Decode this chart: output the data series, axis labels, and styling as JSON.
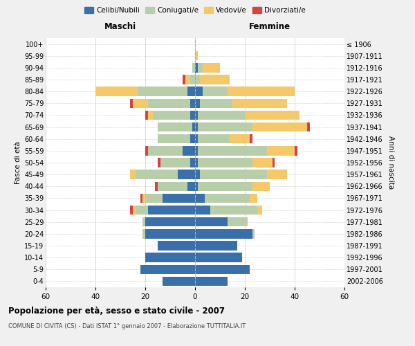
{
  "age_groups": [
    "0-4",
    "5-9",
    "10-14",
    "15-19",
    "20-24",
    "25-29",
    "30-34",
    "35-39",
    "40-44",
    "45-49",
    "50-54",
    "55-59",
    "60-64",
    "65-69",
    "70-74",
    "75-79",
    "80-84",
    "85-89",
    "90-94",
    "95-99",
    "100+"
  ],
  "birth_years": [
    "2002-2006",
    "1997-2001",
    "1992-1996",
    "1987-1991",
    "1982-1986",
    "1977-1981",
    "1972-1976",
    "1967-1971",
    "1962-1966",
    "1957-1961",
    "1952-1956",
    "1947-1951",
    "1942-1946",
    "1937-1941",
    "1932-1936",
    "1927-1931",
    "1922-1926",
    "1917-1921",
    "1912-1916",
    "1907-1911",
    "≤ 1906"
  ],
  "maschi": {
    "celibi": [
      13,
      22,
      20,
      15,
      20,
      20,
      19,
      13,
      3,
      7,
      2,
      5,
      2,
      1,
      2,
      2,
      3,
      0,
      0,
      0,
      0
    ],
    "coniugati": [
      0,
      0,
      0,
      0,
      1,
      1,
      5,
      7,
      12,
      17,
      12,
      14,
      13,
      14,
      15,
      17,
      20,
      2,
      1,
      0,
      0
    ],
    "vedovi": [
      0,
      0,
      0,
      0,
      0,
      0,
      1,
      1,
      0,
      2,
      0,
      0,
      0,
      0,
      2,
      6,
      17,
      2,
      0,
      0,
      0
    ],
    "divorziati": [
      0,
      0,
      0,
      0,
      0,
      0,
      1,
      1,
      1,
      0,
      1,
      1,
      0,
      0,
      1,
      1,
      0,
      1,
      0,
      0,
      0
    ]
  },
  "femmine": {
    "nubili": [
      13,
      22,
      19,
      17,
      23,
      13,
      6,
      4,
      1,
      2,
      1,
      1,
      1,
      1,
      1,
      2,
      3,
      0,
      1,
      0,
      0
    ],
    "coniugate": [
      0,
      0,
      0,
      0,
      1,
      8,
      19,
      18,
      22,
      27,
      22,
      28,
      13,
      22,
      19,
      13,
      10,
      2,
      2,
      0,
      0
    ],
    "vedove": [
      0,
      0,
      0,
      0,
      0,
      0,
      2,
      3,
      7,
      8,
      8,
      11,
      8,
      22,
      22,
      22,
      27,
      12,
      7,
      1,
      0
    ],
    "divorziate": [
      0,
      0,
      0,
      0,
      0,
      0,
      0,
      0,
      0,
      0,
      1,
      1,
      1,
      1,
      0,
      0,
      0,
      0,
      0,
      0,
      0
    ]
  },
  "colors": {
    "celibi": "#3a6faa",
    "coniugati": "#b8ceab",
    "vedovi": "#f5c96a",
    "divorziati": "#d94040"
  },
  "xlim": 60,
  "title": "Popolazione per età, sesso e stato civile - 2007",
  "subtitle": "COMUNE DI CIVITA (CS) - Dati ISTAT 1° gennaio 2007 - Elaborazione TUTTITALIA.IT",
  "xlabel_left": "Maschi",
  "xlabel_right": "Femmine",
  "ylabel_left": "Fasce di età",
  "ylabel_right": "Anni di nascita",
  "legend_labels": [
    "Celibi/Nubili",
    "Coniugati/e",
    "Vedovi/e",
    "Divorziati/e"
  ],
  "bg_color": "#f0f0f0",
  "plot_bg_color": "#ffffff"
}
